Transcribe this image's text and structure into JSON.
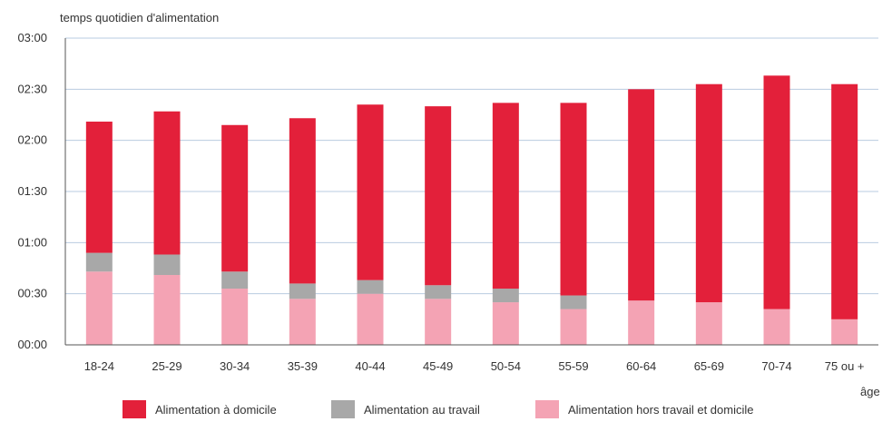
{
  "chart_data": {
    "type": "bar",
    "stacked": true,
    "title": "",
    "ylabel": "temps quotidien d'alimentation",
    "xlabel": "âge",
    "ylim_minutes": [
      0,
      180
    ],
    "yticks": [
      "00:00",
      "00:30",
      "01:00",
      "01:30",
      "02:00",
      "02:30",
      "03:00"
    ],
    "grid": true,
    "legend_placement": "bottom",
    "categories": [
      "18-24",
      "25-29",
      "30-34",
      "35-39",
      "40-44",
      "45-49",
      "50-54",
      "55-59",
      "60-64",
      "65-69",
      "70-74",
      "75 ou +"
    ],
    "series": [
      {
        "name": "Alimentation hors travail et domicile",
        "color": "#f4a3b4",
        "values_minutes": [
          43,
          41,
          33,
          27,
          30,
          27,
          25,
          21,
          26,
          25,
          21,
          15
        ]
      },
      {
        "name": "Alimentation au travail",
        "color": "#a8a8a8",
        "values_minutes": [
          11,
          12,
          10,
          9,
          8,
          8,
          8,
          8,
          0,
          0,
          0,
          0
        ]
      },
      {
        "name": "Alimentation à domicile",
        "color": "#e3203a",
        "values_minutes": [
          77,
          84,
          86,
          97,
          103,
          105,
          109,
          113,
          124,
          128,
          137,
          138
        ]
      }
    ],
    "legend_order": [
      "Alimentation à domicile",
      "Alimentation au travail",
      "Alimentation hors travail et domicile"
    ]
  }
}
